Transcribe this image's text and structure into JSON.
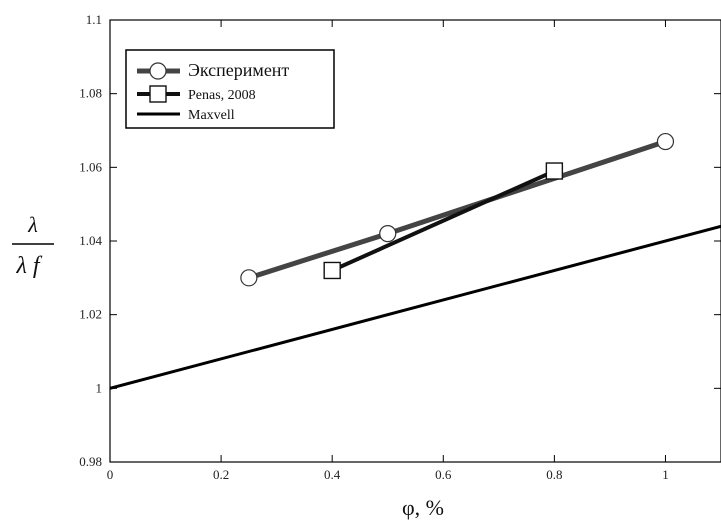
{
  "chart_data": {
    "type": "line",
    "title": "",
    "xlabel": "φ, %",
    "ylabel_numerator": "λ",
    "ylabel_denominator": "λ f",
    "xlim": [
      0,
      1.1
    ],
    "ylim": [
      0.98,
      1.1
    ],
    "xticks": [
      0,
      0.2,
      0.4,
      0.6,
      0.8,
      1
    ],
    "xtick_labels": [
      "0",
      "0.2",
      "0.4",
      "0.6",
      "0.8",
      "1"
    ],
    "yticks": [
      0.98,
      1,
      1.02,
      1.04,
      1.06,
      1.08,
      1.1
    ],
    "ytick_labels": [
      "0.98",
      "1",
      "1.02",
      "1.04",
      "1.06",
      "1.08",
      "1.1"
    ],
    "grid": false,
    "legend_position": "top-left",
    "series": [
      {
        "name": "Эксперимент",
        "marker": "circle",
        "color": "#444444",
        "x": [
          0.25,
          0.5,
          1.0
        ],
        "y": [
          1.03,
          1.042,
          1.067
        ]
      },
      {
        "name": "Penas, 2008",
        "marker": "square",
        "color": "#111111",
        "x": [
          0.4,
          0.8
        ],
        "y": [
          1.032,
          1.059
        ]
      },
      {
        "name": "Maxvell",
        "marker": "none",
        "color": "#000000",
        "x": [
          0,
          1.1
        ],
        "y": [
          1.0,
          1.044
        ]
      }
    ]
  }
}
